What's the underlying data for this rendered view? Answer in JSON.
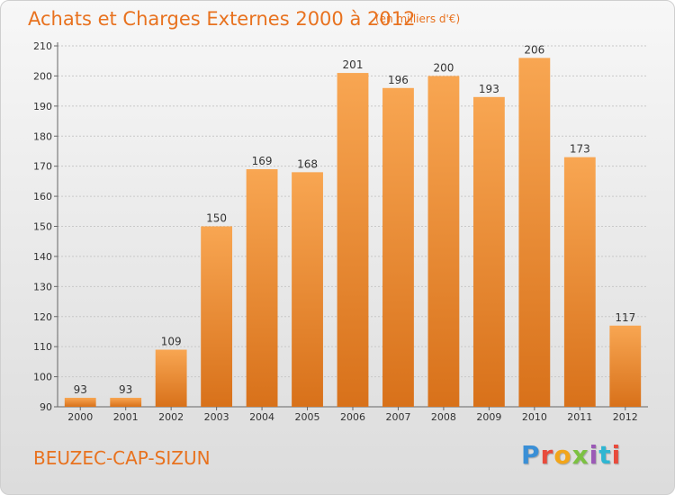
{
  "header": {
    "title": "Achats et Charges Externes 2000 à 2012",
    "subtitle": "(en milliers d'€)"
  },
  "footer": {
    "city": "BEUZEC-CAP-SIZUN",
    "logo": "Proxiti",
    "logo_colors": [
      "#3a8fd6",
      "#e84b3c",
      "#f2a51a",
      "#7cc142",
      "#9b59b6",
      "#2fb6d2",
      "#e84b3c"
    ]
  },
  "colors": {
    "bar_light": "#f8a652",
    "bar_dark": "#d8711a",
    "grid": "#c8c8c8"
  },
  "chart_data": {
    "type": "bar",
    "title": "Achats et Charges Externes 2000 à 2012",
    "subtitle": "(en milliers d'€)",
    "categories": [
      "2000",
      "2001",
      "2002",
      "2003",
      "2004",
      "2005",
      "2006",
      "2007",
      "2008",
      "2009",
      "2010",
      "2011",
      "2012"
    ],
    "values": [
      93,
      93,
      109,
      150,
      169,
      168,
      201,
      196,
      200,
      193,
      206,
      173,
      117
    ],
    "ylim": [
      90,
      210
    ],
    "yticks": [
      90,
      100,
      110,
      120,
      130,
      140,
      150,
      160,
      170,
      180,
      190,
      200,
      210
    ],
    "grid": true,
    "data_labels": true
  }
}
